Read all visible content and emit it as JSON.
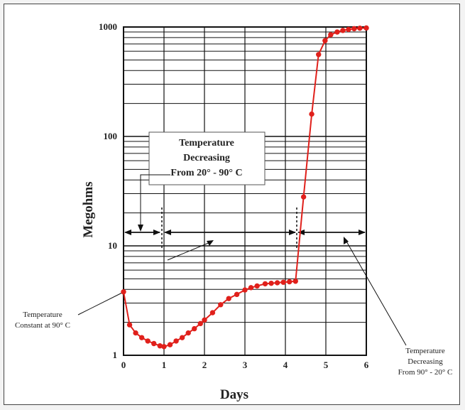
{
  "chart_data": {
    "type": "line",
    "title": "",
    "xlabel": "Days",
    "ylabel": "Megohms",
    "xlim": [
      0,
      6
    ],
    "ylim": [
      1,
      1000
    ],
    "yscale": "log",
    "grid": true,
    "x_ticks": [
      "0",
      "1",
      "2",
      "3",
      "4",
      "5",
      "6"
    ],
    "y_ticks": [
      "1",
      "10",
      "100",
      "1000"
    ],
    "line_color": "#e0201b",
    "marker_color": "#e0201b",
    "series": [
      {
        "points": [
          [
            0,
            3.8
          ],
          [
            0.15,
            1.9
          ],
          [
            0.3,
            1.6
          ],
          [
            0.45,
            1.45
          ],
          [
            0.6,
            1.35
          ],
          [
            0.75,
            1.28
          ],
          [
            0.9,
            1.22
          ],
          [
            1.0,
            1.2
          ],
          [
            1.15,
            1.25
          ],
          [
            1.3,
            1.35
          ],
          [
            1.45,
            1.45
          ],
          [
            1.6,
            1.6
          ],
          [
            1.75,
            1.75
          ],
          [
            1.9,
            1.95
          ],
          [
            2.0,
            2.1
          ],
          [
            2.2,
            2.45
          ],
          [
            2.4,
            2.9
          ],
          [
            2.6,
            3.3
          ],
          [
            2.8,
            3.6
          ],
          [
            3.0,
            3.95
          ],
          [
            3.15,
            4.15
          ],
          [
            3.3,
            4.3
          ],
          [
            3.5,
            4.5
          ],
          [
            3.65,
            4.55
          ],
          [
            3.8,
            4.6
          ],
          [
            3.95,
            4.65
          ],
          [
            4.1,
            4.7
          ],
          [
            4.25,
            4.75
          ],
          [
            4.45,
            28
          ],
          [
            4.65,
            160
          ],
          [
            4.82,
            560
          ],
          [
            4.98,
            750
          ],
          [
            5.12,
            850
          ],
          [
            5.28,
            900
          ],
          [
            5.42,
            930
          ],
          [
            5.56,
            950
          ],
          [
            5.7,
            965
          ],
          [
            5.84,
            975
          ],
          [
            6.0,
            980
          ]
        ]
      }
    ],
    "annotations": {
      "box_lines": [
        "Temperature",
        "Decreasing",
        "From 20° - 90° C"
      ],
      "left_lines": [
        "Temperature",
        "Constant at 90° C"
      ],
      "right_lines": [
        "Temperature",
        "Decreasing",
        "From 90° - 20° C"
      ]
    }
  }
}
